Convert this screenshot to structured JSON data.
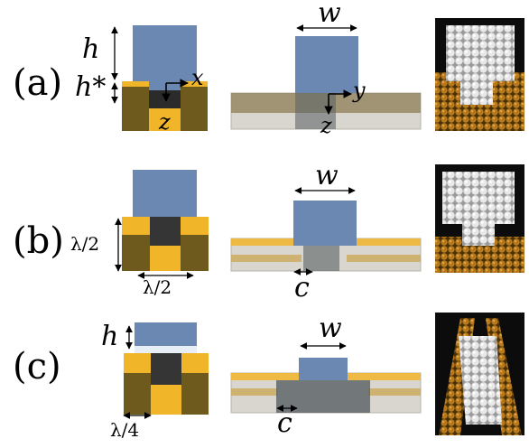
{
  "rows": [
    {
      "label": "(a)",
      "w": "w",
      "h": "h",
      "hstar": "h*",
      "x": "x",
      "y": "y",
      "z1": "z",
      "z2": "z"
    },
    {
      "label": "(b)",
      "w": "w",
      "lam_v": "λ/2",
      "lam_h": "λ/2",
      "c": "c"
    },
    {
      "label": "(c)",
      "w": "w",
      "h": "h",
      "lam_q": "λ/4",
      "c": "c"
    }
  ],
  "colors": {
    "block": "#6b88b3",
    "gold": "#f1b52a",
    "olive": "#6f5a1e",
    "glass": "#d9d6cf",
    "panel_bg": "#0c0c0c"
  }
}
